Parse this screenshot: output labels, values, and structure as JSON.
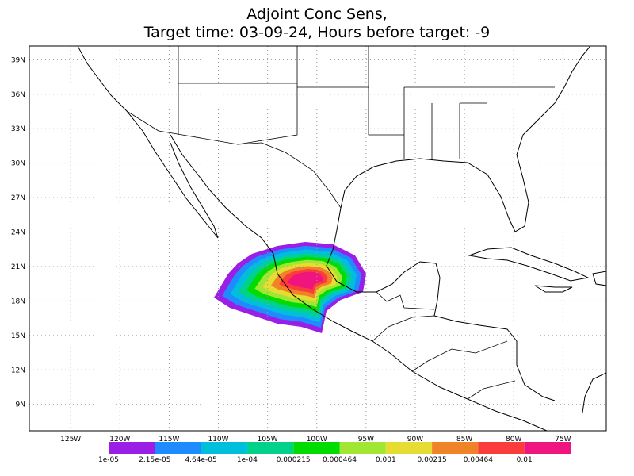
{
  "title": [
    "Adjoint Conc Sens,",
    "Target time: 03-09-24, Hours before target: -9"
  ],
  "map": {
    "lonlim": [
      -129.2,
      -70.6
    ],
    "latlim": [
      6.7,
      40.2
    ],
    "grid": true,
    "lon_ticks": [
      {
        "value": -125,
        "label": "125W"
      },
      {
        "value": -120,
        "label": "120W"
      },
      {
        "value": -115,
        "label": "115W"
      },
      {
        "value": -110,
        "label": "110W"
      },
      {
        "value": -105,
        "label": "105W"
      },
      {
        "value": -100,
        "label": "100W"
      },
      {
        "value": -95,
        "label": "95W"
      },
      {
        "value": -90,
        "label": "90W"
      },
      {
        "value": -85,
        "label": "85W"
      },
      {
        "value": -80,
        "label": "80W"
      },
      {
        "value": -75,
        "label": "75W"
      }
    ],
    "lat_ticks": [
      {
        "value": 39,
        "label": "39N"
      },
      {
        "value": 36,
        "label": "36N"
      },
      {
        "value": 33,
        "label": "33N"
      },
      {
        "value": 30,
        "label": "30N"
      },
      {
        "value": 27,
        "label": "27N"
      },
      {
        "value": 24,
        "label": "24N"
      },
      {
        "value": 21,
        "label": "21N"
      },
      {
        "value": 18,
        "label": "18N"
      },
      {
        "value": 15,
        "label": "15N"
      },
      {
        "value": 12,
        "label": "12N"
      },
      {
        "value": 9,
        "label": "9N"
      }
    ]
  },
  "colorbar": {
    "colors": [
      "#9b1ee6",
      "#1e8cff",
      "#00bedc",
      "#00d28c",
      "#00dc00",
      "#a0e632",
      "#e6dc32",
      "#f08228",
      "#fa3c3c",
      "#f0147f"
    ],
    "levels": [
      {
        "value": 1e-05,
        "label": "1e-05"
      },
      {
        "value": 2.15e-05,
        "label": "2.15e-05"
      },
      {
        "value": 4.64e-05,
        "label": "4.64e-05"
      },
      {
        "value": 0.0001,
        "label": "1e-04"
      },
      {
        "value": 0.000215,
        "label": "0.000215"
      },
      {
        "value": 0.000464,
        "label": "0.000464"
      },
      {
        "value": 0.001,
        "label": "0.001"
      },
      {
        "value": 0.00215,
        "label": "0.00215"
      },
      {
        "value": 0.00464,
        "label": "0.00464"
      },
      {
        "value": 0.01,
        "label": "0.01"
      }
    ]
  }
}
